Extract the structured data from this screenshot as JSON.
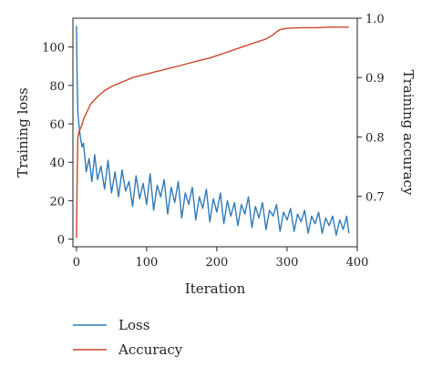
{
  "chart_data": {
    "type": "line",
    "title": "",
    "xlabel": "Iteration",
    "ylabel_left": "Training loss",
    "ylabel_right": "Training accuracy",
    "xlim": [
      -5,
      400
    ],
    "ylim_left": [
      -4,
      115
    ],
    "ylim_right": [
      0.615,
      1.0
    ],
    "x_ticks": [
      0,
      100,
      200,
      300,
      400
    ],
    "y_ticks_left": [
      0,
      20,
      40,
      60,
      80,
      100
    ],
    "y_ticks_right": [
      0.7,
      0.8,
      0.9,
      1.0
    ],
    "y_tick_labels_right": [
      "0.7",
      "0.8",
      "0.9",
      "1.0"
    ],
    "grid": false,
    "legend_position": "bottom-left",
    "series": [
      {
        "name": "Loss",
        "axis": "left",
        "color": "#2f7ab9",
        "x": [
          0,
          1,
          2,
          4,
          6,
          8,
          10,
          14,
          18,
          22,
          26,
          30,
          35,
          40,
          45,
          50,
          55,
          60,
          65,
          70,
          75,
          80,
          85,
          90,
          95,
          100,
          105,
          110,
          115,
          120,
          125,
          130,
          135,
          140,
          145,
          150,
          155,
          160,
          165,
          170,
          175,
          180,
          185,
          190,
          195,
          200,
          205,
          210,
          215,
          220,
          225,
          230,
          235,
          240,
          245,
          250,
          255,
          260,
          265,
          270,
          275,
          280,
          285,
          290,
          295,
          300,
          305,
          310,
          315,
          320,
          325,
          330,
          335,
          340,
          345,
          350,
          355,
          360,
          365,
          370,
          375,
          380,
          385,
          388
        ],
        "values": [
          111,
          85,
          66,
          58,
          52,
          48,
          50,
          35,
          42,
          30,
          44,
          31,
          38,
          26,
          41,
          24,
          35,
          22,
          36,
          25,
          30,
          17,
          33,
          21,
          29,
          18,
          34,
          15,
          28,
          22,
          31,
          13,
          27,
          19,
          30,
          11,
          24,
          18,
          27,
          10,
          22,
          16,
          26,
          9,
          21,
          14,
          24,
          8,
          20,
          12,
          19,
          7,
          18,
          13,
          22,
          6,
          17,
          11,
          19,
          5,
          15,
          12,
          18,
          4,
          14,
          10,
          16,
          4,
          13,
          9,
          15,
          3,
          12,
          8,
          14,
          3,
          11,
          7,
          12,
          2,
          10,
          5,
          12,
          3
        ]
      },
      {
        "name": "Accuracy",
        "axis": "right",
        "color": "#c8472b",
        "x": [
          0,
          1,
          2,
          3,
          4,
          6,
          8,
          10,
          15,
          20,
          30,
          40,
          50,
          60,
          70,
          80,
          90,
          100,
          110,
          120,
          130,
          140,
          150,
          160,
          170,
          180,
          190,
          200,
          210,
          220,
          230,
          240,
          250,
          260,
          270,
          280,
          285,
          290,
          300,
          320,
          340,
          360,
          380,
          388
        ],
        "values": [
          0.63,
          0.72,
          0.8,
          0.805,
          0.81,
          0.815,
          0.82,
          0.83,
          0.842,
          0.855,
          0.868,
          0.878,
          0.885,
          0.89,
          0.895,
          0.9,
          0.903,
          0.906,
          0.909,
          0.912,
          0.915,
          0.918,
          0.921,
          0.924,
          0.927,
          0.93,
          0.933,
          0.937,
          0.941,
          0.945,
          0.949,
          0.953,
          0.957,
          0.961,
          0.965,
          0.972,
          0.977,
          0.981,
          0.983,
          0.984,
          0.984,
          0.985,
          0.985,
          0.985
        ]
      }
    ]
  }
}
